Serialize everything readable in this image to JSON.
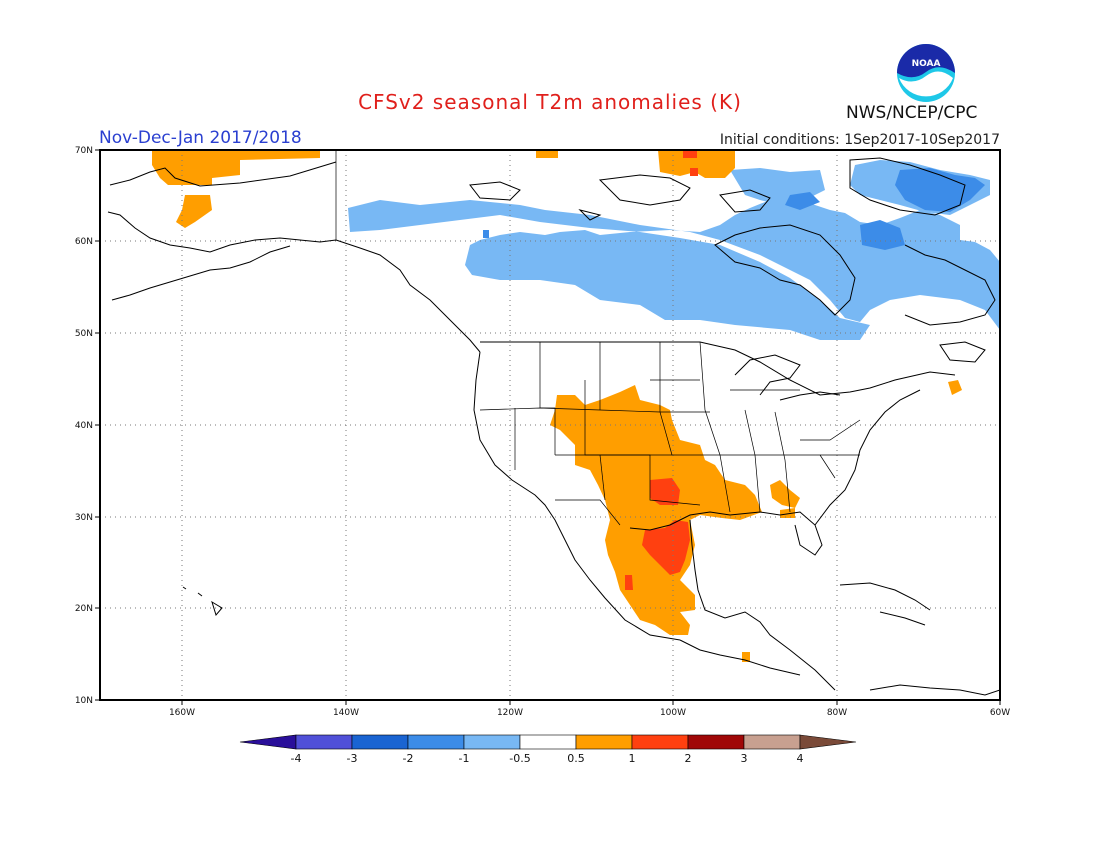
{
  "header": {
    "title": "CFSv2 seasonal T2m anomalies (K)",
    "period": "Nov-Dec-Jan 2017/2018",
    "initial_conditions": "Initial conditions: 1Sep2017-10Sep2017",
    "agency": "NWS/NCEP/CPC",
    "logo_text": "NOAA"
  },
  "axes": {
    "lat_labels": [
      "70N",
      "60N",
      "50N",
      "40N",
      "30N",
      "20N",
      "10N"
    ],
    "lon_labels": [
      "160W",
      "140W",
      "120W",
      "100W",
      "80W",
      "60W"
    ]
  },
  "colorbar": {
    "labels": [
      "-4",
      "-3",
      "-2",
      "-1",
      "-0.5",
      "0.5",
      "1",
      "2",
      "3",
      "4"
    ],
    "colors": [
      "#2a0f9a",
      "#5050d8",
      "#1a64d2",
      "#3c8ce8",
      "#78b8f4",
      "#ffffff",
      "#ff9e00",
      "#ff4010",
      "#a00808",
      "#c8a090",
      "#7a4a38"
    ]
  }
}
